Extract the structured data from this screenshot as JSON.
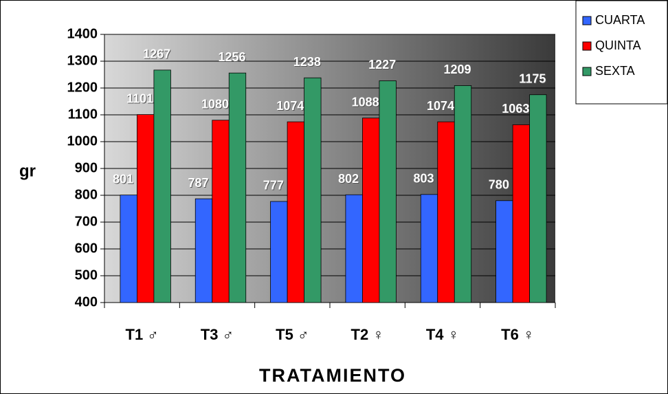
{
  "chart_data": {
    "type": "bar",
    "categories": [
      "T1 ♂",
      "T3 ♂",
      "T5 ♂",
      "T2 ♀",
      "T4 ♀",
      "T6 ♀"
    ],
    "series": [
      {
        "name": "CUARTA",
        "color": "#3366ff",
        "values": [
          801,
          787,
          777,
          802,
          803,
          780
        ]
      },
      {
        "name": "QUINTA",
        "color": "#ff0000",
        "values": [
          1101,
          1080,
          1074,
          1088,
          1074,
          1063
        ]
      },
      {
        "name": "SEXTA",
        "color": "#339966",
        "values": [
          1267,
          1256,
          1238,
          1227,
          1209,
          1175
        ]
      }
    ],
    "ylabel": "gr",
    "xlabel": "TRATAMIENTO",
    "ylim": [
      400,
      1400
    ],
    "yticks": [
      400,
      500,
      600,
      700,
      800,
      900,
      1000,
      1100,
      1200,
      1300,
      1400
    ],
    "grid": true,
    "legend": "top-right"
  }
}
